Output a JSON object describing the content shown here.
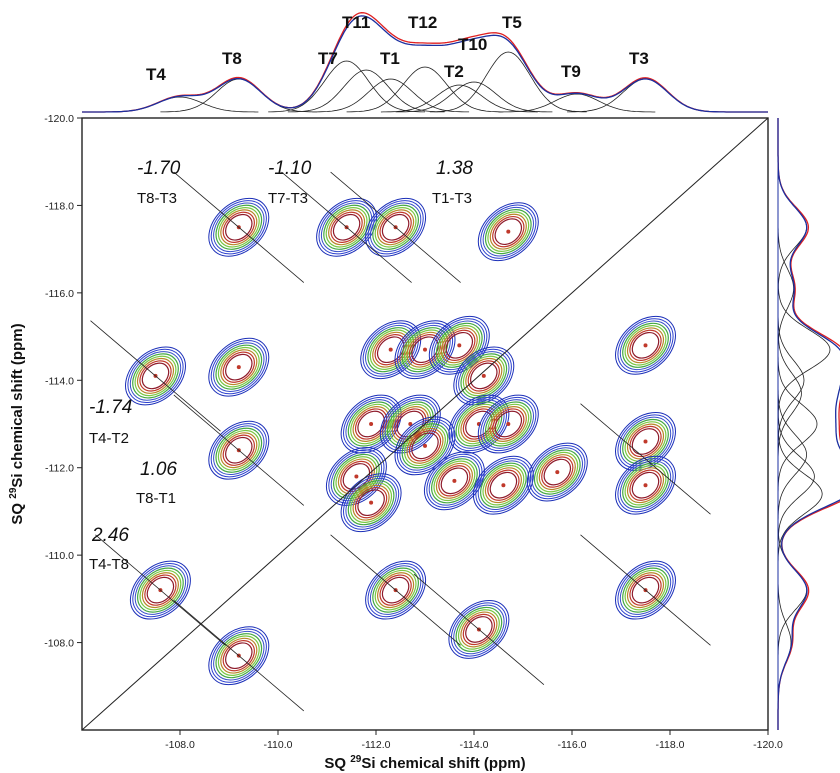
{
  "chart_data": {
    "type": "scatter",
    "title": "",
    "xlabel": "SQ 29Si chemical shift (ppm)",
    "ylabel": "SQ 29Si chemical shift (ppm)",
    "xlabel_parts": [
      "SQ ",
      "29",
      "Si chemical  shift (ppm)"
    ],
    "ylabel_parts": [
      "SQ ",
      "29",
      "Si chemical  shift (ppm)"
    ],
    "xlim": [
      -106.0,
      -120.0
    ],
    "ylim": [
      -106.0,
      -120.0
    ],
    "x_ticks": [
      "-108.0",
      "-110.0",
      "-112.0",
      "-114.0",
      "-116.0",
      "-118.0",
      "-120.0"
    ],
    "y_ticks": [
      "-108.0",
      "-110.0",
      "-112.0",
      "-114.0",
      "-116.0",
      "-118.0",
      "-120.0"
    ],
    "top_projection_sites": [
      {
        "label": "T4",
        "x": -108.0
      },
      {
        "label": "T8",
        "x": -109.2
      },
      {
        "label": "T7",
        "x": -111.4
      },
      {
        "label": "T11",
        "x": -111.8
      },
      {
        "label": "T1",
        "x": -112.3
      },
      {
        "label": "T12",
        "x": -113.0
      },
      {
        "label": "T2",
        "x": -113.7
      },
      {
        "label": "T10",
        "x": -114.0
      },
      {
        "label": "T5",
        "x": -114.7
      },
      {
        "label": "T9",
        "x": -116.1
      },
      {
        "label": "T3",
        "x": -117.5
      }
    ],
    "correlations": [
      {
        "value": "-1.70",
        "pair": "T8-T3"
      },
      {
        "value": "-1.10",
        "pair": "T7-T3"
      },
      {
        "value": "1.38",
        "pair": "T1-T3"
      },
      {
        "value": "-1.74",
        "pair": "T4-T2"
      },
      {
        "value": "1.06",
        "pair": "T8-T1"
      },
      {
        "value": "2.46",
        "pair": "T4-T8"
      }
    ],
    "cross_peaks": [
      {
        "x": -109.2,
        "y": -117.5
      },
      {
        "x": -111.4,
        "y": -117.5
      },
      {
        "x": -112.4,
        "y": -117.5
      },
      {
        "x": -114.7,
        "y": -117.4
      },
      {
        "x": -112.3,
        "y": -114.7
      },
      {
        "x": -113.0,
        "y": -114.7
      },
      {
        "x": -111.9,
        "y": -113.0
      },
      {
        "x": -112.7,
        "y": -113.0
      },
      {
        "x": -113.7,
        "y": -114.8
      },
      {
        "x": -114.2,
        "y": -114.1
      },
      {
        "x": -117.5,
        "y": -114.8
      },
      {
        "x": -107.5,
        "y": -114.1
      },
      {
        "x": -109.2,
        "y": -114.3
      },
      {
        "x": -109.2,
        "y": -112.4
      },
      {
        "x": -113.0,
        "y": -112.5
      },
      {
        "x": -114.1,
        "y": -113.0
      },
      {
        "x": -114.7,
        "y": -113.0
      },
      {
        "x": -113.6,
        "y": -111.7
      },
      {
        "x": -114.6,
        "y": -111.6
      },
      {
        "x": -115.7,
        "y": -111.9
      },
      {
        "x": -117.5,
        "y": -112.6
      },
      {
        "x": -117.5,
        "y": -111.6
      },
      {
        "x": -111.6,
        "y": -111.8
      },
      {
        "x": -111.9,
        "y": -111.2
      },
      {
        "x": -107.6,
        "y": -109.2
      },
      {
        "x": -112.4,
        "y": -109.2
      },
      {
        "x": -114.1,
        "y": -108.3
      },
      {
        "x": -117.5,
        "y": -109.2
      },
      {
        "x": -109.2,
        "y": -107.7
      }
    ]
  }
}
